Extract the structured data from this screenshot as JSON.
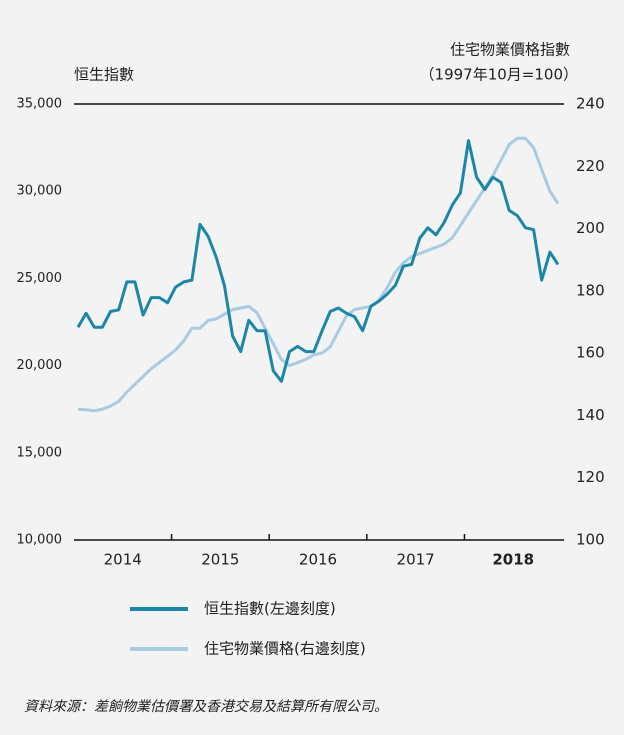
{
  "chart_data": {
    "type": "line",
    "y_title": "恒生指數",
    "y2_title": [
      "住宅物業價格指數",
      "（1997年10月=100）"
    ],
    "categories": [
      null,
      null,
      null,
      null,
      null,
      null,
      "2014",
      null,
      null,
      null,
      null,
      null,
      null,
      null,
      null,
      null,
      null,
      null,
      "2015",
      null,
      null,
      null,
      null,
      null,
      null,
      null,
      null,
      null,
      null,
      null,
      "2016",
      null,
      null,
      null,
      null,
      null,
      null,
      null,
      null,
      null,
      null,
      null,
      "2017",
      null,
      null,
      null,
      null,
      null,
      null,
      null,
      null,
      null,
      null,
      null,
      "2018",
      null,
      null,
      null,
      null,
      null
    ],
    "series": [
      {
        "name": "恒生指數(左邊刻度)",
        "color": "#1b86a8",
        "axis": "y",
        "values": [
          22200,
          23000,
          22200,
          22200,
          23100,
          23200,
          24800,
          24800,
          22900,
          23900,
          23900,
          23600,
          24500,
          24800,
          24900,
          28100,
          27400,
          26200,
          24600,
          21700,
          20800,
          22600,
          22000,
          22000,
          19700,
          19100,
          20800,
          21100,
          20800,
          20800,
          22000,
          23100,
          23300,
          23000,
          22800,
          22000,
          23400,
          23700,
          24100,
          24600,
          25700,
          25800,
          27300,
          27900,
          27500,
          28200,
          29200,
          29900,
          32900,
          30800,
          30100,
          30800,
          30500,
          28900,
          28600,
          27900,
          27800,
          24900,
          26500,
          25800
        ]
      },
      {
        "name": "住宅物業價格(右邊刻度)",
        "color": "#a9cbe2",
        "axis": "y2",
        "values": [
          142,
          141.8,
          141.5,
          142,
          143,
          144.5,
          147.5,
          150,
          152.5,
          155,
          157,
          159,
          161,
          164,
          168,
          168,
          170.5,
          171,
          172.5,
          174,
          174.5,
          175,
          173,
          168,
          163,
          158,
          156,
          157,
          158,
          159.5,
          160,
          162,
          167,
          172,
          174,
          174.5,
          175,
          177,
          181,
          186,
          189,
          191,
          192,
          193,
          194,
          195,
          197,
          201,
          205,
          209,
          213,
          217,
          222,
          227,
          229,
          229,
          226,
          219,
          212,
          208
        ]
      }
    ],
    "ylim": [
      10000,
      35000
    ],
    "yticks": [
      {
        "value": 10000,
        "label": "10,000"
      },
      {
        "value": 15000,
        "label": "15,000"
      },
      {
        "value": 20000,
        "label": "20,000"
      },
      {
        "value": 25000,
        "label": "25,000"
      },
      {
        "value": 30000,
        "label": "30,000"
      },
      {
        "value": 35000,
        "label": "35,000"
      }
    ],
    "y2lim": [
      100,
      240
    ],
    "y2ticks": [
      100,
      120,
      140,
      160,
      180,
      200,
      220,
      240
    ],
    "source": "資料來源：差餉物業估價署及香港交易及結算所有限公司。"
  }
}
